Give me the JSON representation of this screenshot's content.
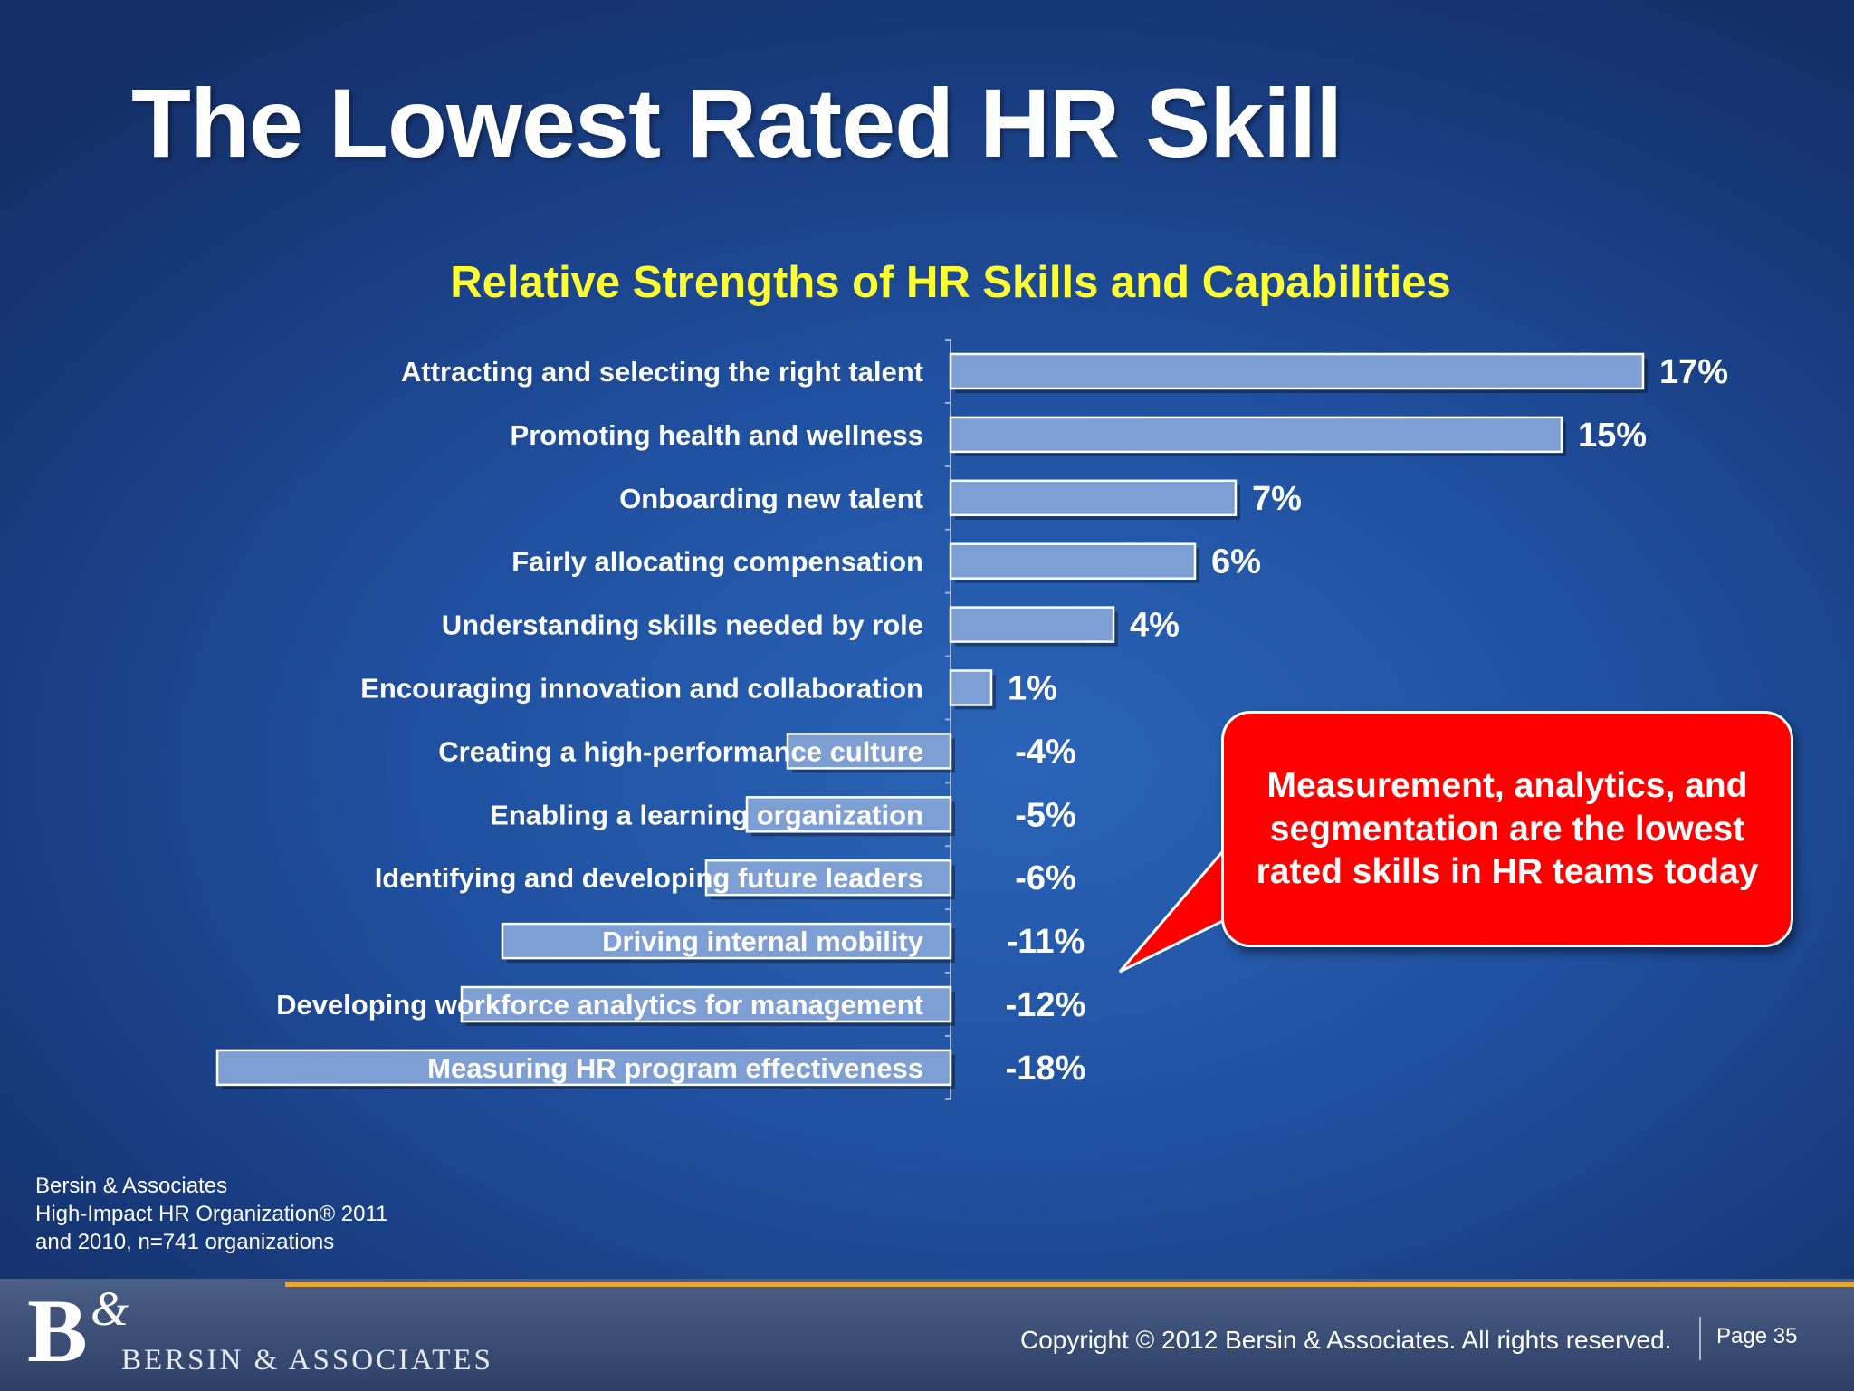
{
  "slide": {
    "title": "The Lowest Rated HR Skill"
  },
  "chart_data": {
    "type": "bar",
    "orientation": "horizontal",
    "title": "Relative Strengths of HR Skills and Capabilities",
    "xlabel": "",
    "ylabel": "",
    "xlim": [
      -18,
      17
    ],
    "grid": false,
    "categories": [
      "Attracting and selecting the right talent",
      "Promoting health and wellness",
      "Onboarding new talent",
      "Fairly allocating compensation",
      "Understanding skills needed by role",
      "Encouraging innovation and collaboration",
      "Creating a high-performance culture",
      "Enabling a learning organization",
      "Identifying and developing future leaders",
      "Driving internal mobility",
      "Developing workforce analytics for management",
      "Measuring HR program effectiveness"
    ],
    "values": [
      17,
      15,
      7,
      6,
      4,
      1,
      -4,
      -5,
      -6,
      -11,
      -12,
      -18
    ],
    "value_labels": [
      "17%",
      "15%",
      "7%",
      "6%",
      "4%",
      "1%",
      "-4%",
      "-5%",
      "-6%",
      "-11%",
      "-12%",
      "-18%"
    ],
    "bar_color": "#7e9fd4",
    "label_color": "#ffffff",
    "title_color": "#ffff33"
  },
  "callout": {
    "text": "Measurement, analytics, and segmentation are the lowest rated skills in HR teams today",
    "color": "#ff0000"
  },
  "source": {
    "line1": "Bersin & Associates",
    "line2": "High-Impact HR Organization® 2011",
    "line3": "and 2010, n=741 organizations"
  },
  "footer": {
    "logo_mark": "B",
    "logo_amp": "&",
    "logo_name": "BERSIN & ASSOCIATES",
    "copyright": "Copyright © 2012 Bersin & Associates. All rights reserved.",
    "page": "Page 35",
    "accent_color": "#e8a33a"
  }
}
